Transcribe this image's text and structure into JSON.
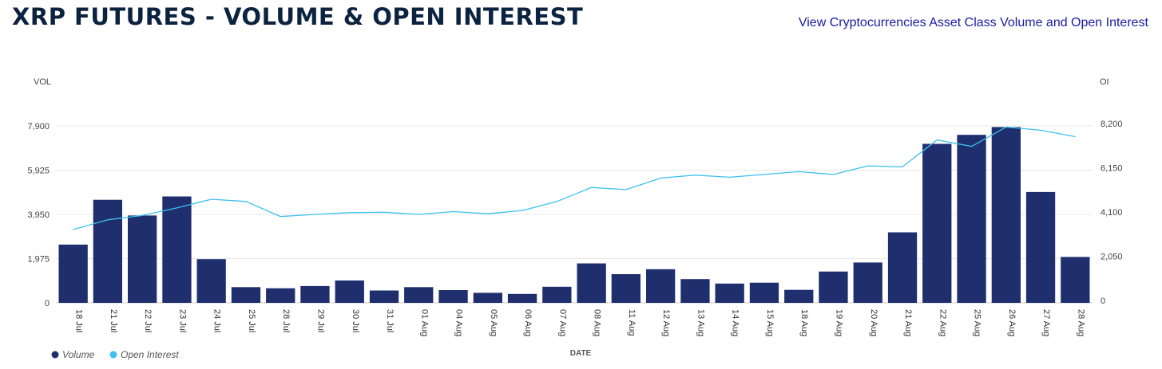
{
  "header": {
    "title": "XRP FUTURES - VOLUME & OPEN INTEREST",
    "link_label": "View Cryptocurrencies Asset Class Volume and Open Interest"
  },
  "colors": {
    "title": "#0c2340",
    "link": "#1a1aa6",
    "volume": "#1f2f6e",
    "open_interest": "#3cc0ee",
    "grid": "#e8e8e8"
  },
  "chart_data": {
    "type": "bar",
    "categories": [
      "18 Jul",
      "21 Jul",
      "22 Jul",
      "23 Jul",
      "24 Jul",
      "25 Jul",
      "28 Jul",
      "29 Jul",
      "30 Jul",
      "31 Jul",
      "01 Aug",
      "04 Aug",
      "05 Aug",
      "06 Aug",
      "07 Aug",
      "08 Aug",
      "11 Aug",
      "12 Aug",
      "13 Aug",
      "14 Aug",
      "15 Aug",
      "18 Aug",
      "19 Aug",
      "20 Aug",
      "21 Aug",
      "22 Aug",
      "25 Aug",
      "26 Aug",
      "27 Aug",
      "28 Aug"
    ],
    "xlabel": "DATE",
    "y_left": {
      "label": "VOL",
      "ticks": [
        "0",
        "1,975",
        "3,950",
        "5,925",
        "7,900"
      ],
      "ylim": [
        0,
        7900
      ]
    },
    "y_right": {
      "label": "OI",
      "ticks": [
        "0",
        "2,050",
        "4,100",
        "6,150",
        "8,200"
      ],
      "ylim": [
        0,
        8200
      ]
    },
    "grid": true,
    "legend_position": "bottom-left",
    "series": [
      {
        "name": "Volume",
        "type": "bar",
        "axis": "left",
        "values": [
          2600,
          4600,
          3900,
          4750,
          1950,
          700,
          650,
          750,
          1000,
          550,
          700,
          570,
          450,
          400,
          720,
          1760,
          1280,
          1500,
          1060,
          860,
          900,
          580,
          1400,
          1800,
          3150,
          7100,
          7500,
          7850,
          4950,
          2050
        ]
      },
      {
        "name": "Open Interest",
        "type": "line",
        "axis": "right",
        "values": [
          3400,
          3850,
          4050,
          4400,
          4800,
          4700,
          4000,
          4100,
          4180,
          4200,
          4100,
          4230,
          4130,
          4280,
          4700,
          5350,
          5250,
          5780,
          5920,
          5820,
          5950,
          6080,
          5950,
          6350,
          6300,
          7550,
          7250,
          8150,
          8000,
          7700
        ]
      }
    ]
  }
}
